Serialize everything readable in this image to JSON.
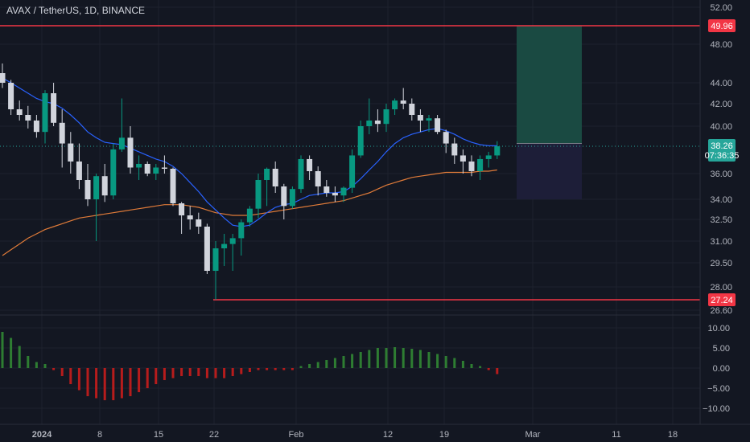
{
  "symbol": {
    "title": "AVAX / TetherUS, 1D, BINANCE"
  },
  "colors": {
    "background": "#131722",
    "grid": "#1e222d",
    "up": "#26a69a",
    "up_fill": "#089981",
    "down_fill": "#d1d4dc",
    "level_line": "#f23645",
    "ema_fast": "#2962ff",
    "ema_slow": "#e07b39",
    "price_line": "#26a69a",
    "osc_pos": "#2e7d32",
    "osc_neg": "#b71c1c",
    "target_zone": "#1a4d45",
    "stop_zone": "#1e1f3a"
  },
  "price_axis": {
    "ticks": [
      "52.00",
      "48.00",
      "44.00",
      "42.00",
      "40.00",
      "36.00",
      "34.00",
      "32.50",
      "31.00",
      "29.50",
      "28.00",
      "26.60"
    ]
  },
  "levels": [
    {
      "label": "49.96",
      "value": 49.96
    },
    {
      "label": "27.24",
      "value": 27.24
    }
  ],
  "current_price": {
    "label": "38.26",
    "countdown": "07:36:35",
    "value": 38.26
  },
  "oscillator_axis": {
    "ticks": [
      "10.00",
      "5.00",
      "0.00",
      "−5.00",
      "−10.00"
    ]
  },
  "time_axis": {
    "labels": [
      "2024",
      "8",
      "15",
      "22",
      "Feb",
      "12",
      "19",
      "Mar",
      "11",
      "18"
    ]
  },
  "position_tool": {
    "entry": 38.5,
    "target": 49.96,
    "stop": 34.0
  },
  "chart_data": {
    "type": "candlestick",
    "dates": [
      "Dec 27",
      "Dec 28",
      "Dec 29",
      "Dec 30",
      "Dec 31",
      "Jan 1",
      "Jan 2",
      "Jan 3",
      "Jan 4",
      "Jan 5",
      "Jan 6",
      "Jan 7",
      "Jan 8",
      "Jan 9",
      "Jan 10",
      "Jan 11",
      "Jan 12",
      "Jan 13",
      "Jan 14",
      "Jan 15",
      "Jan 16",
      "Jan 17",
      "Jan 18",
      "Jan 19",
      "Jan 20",
      "Jan 21",
      "Jan 22",
      "Jan 23",
      "Jan 24",
      "Jan 25",
      "Jan 26",
      "Jan 27",
      "Jan 28",
      "Jan 29",
      "Jan 30",
      "Jan 31",
      "Feb 1",
      "Feb 2",
      "Feb 3",
      "Feb 4",
      "Feb 5",
      "Feb 6",
      "Feb 7",
      "Feb 8",
      "Feb 9",
      "Feb 10",
      "Feb 11",
      "Feb 12",
      "Feb 13",
      "Feb 14",
      "Feb 15",
      "Feb 16",
      "Feb 17",
      "Feb 18",
      "Feb 19",
      "Feb 20",
      "Feb 21",
      "Feb 22",
      "Feb 23"
    ],
    "ohlc": [
      [
        45.0,
        46.0,
        43.5,
        44.0
      ],
      [
        44.0,
        44.3,
        41.0,
        41.5
      ],
      [
        41.5,
        42.3,
        40.5,
        41.0
      ],
      [
        41.0,
        41.8,
        39.8,
        40.5
      ],
      [
        40.5,
        41.0,
        39.0,
        39.5
      ],
      [
        39.5,
        43.3,
        38.5,
        43.0
      ],
      [
        43.0,
        44.0,
        40.0,
        40.3
      ],
      [
        40.3,
        41.5,
        36.5,
        38.5
      ],
      [
        38.5,
        39.5,
        36.0,
        37.0
      ],
      [
        37.0,
        38.5,
        34.8,
        35.5
      ],
      [
        35.5,
        36.8,
        33.5,
        34.0
      ],
      [
        34.0,
        36.0,
        31.0,
        35.8
      ],
      [
        35.8,
        36.8,
        33.8,
        34.3
      ],
      [
        34.3,
        38.5,
        34.0,
        38.0
      ],
      [
        38.0,
        42.5,
        37.8,
        39.0
      ],
      [
        39.0,
        40.0,
        36.0,
        36.5
      ],
      [
        36.5,
        37.5,
        35.5,
        36.8
      ],
      [
        36.8,
        37.0,
        35.8,
        36.0
      ],
      [
        36.0,
        36.8,
        35.5,
        36.5
      ],
      [
        36.5,
        37.5,
        36.0,
        36.4
      ],
      [
        36.4,
        36.5,
        33.5,
        33.7
      ],
      [
        33.7,
        33.8,
        31.5,
        32.8
      ],
      [
        32.8,
        33.5,
        31.8,
        32.5
      ],
      [
        32.5,
        33.0,
        31.5,
        32.0
      ],
      [
        32.0,
        32.2,
        28.8,
        29.0
      ],
      [
        29.0,
        31.0,
        27.24,
        30.5
      ],
      [
        30.5,
        31.5,
        29.3,
        30.8
      ],
      [
        30.8,
        31.5,
        29.0,
        31.2
      ],
      [
        31.2,
        32.5,
        30.0,
        32.3
      ],
      [
        32.3,
        33.5,
        32.0,
        33.3
      ],
      [
        33.3,
        36.0,
        32.6,
        35.5
      ],
      [
        35.5,
        36.5,
        33.5,
        36.4
      ],
      [
        36.4,
        37.0,
        34.5,
        35.0
      ],
      [
        35.0,
        35.2,
        32.5,
        33.5
      ],
      [
        33.5,
        35.0,
        33.3,
        34.8
      ],
      [
        34.8,
        37.5,
        34.5,
        37.2
      ],
      [
        37.2,
        37.5,
        35.5,
        36.2
      ],
      [
        36.2,
        36.6,
        34.3,
        35.0
      ],
      [
        35.0,
        35.5,
        34.2,
        34.5
      ],
      [
        34.5,
        35.0,
        33.8,
        34.3
      ],
      [
        34.3,
        35.0,
        33.8,
        34.9
      ],
      [
        34.9,
        38.0,
        34.5,
        37.5
      ],
      [
        37.5,
        40.5,
        37.3,
        40.0
      ],
      [
        40.0,
        42.5,
        39.3,
        40.5
      ],
      [
        40.5,
        41.5,
        39.5,
        40.2
      ],
      [
        40.2,
        42.0,
        39.5,
        41.5
      ],
      [
        41.5,
        42.5,
        41.0,
        42.3
      ],
      [
        42.3,
        43.5,
        41.5,
        42.0
      ],
      [
        42.0,
        42.5,
        40.5,
        41.0
      ],
      [
        41.0,
        41.5,
        39.5,
        40.5
      ],
      [
        40.5,
        41.0,
        39.5,
        40.7
      ],
      [
        40.7,
        41.0,
        39.3,
        39.5
      ],
      [
        39.5,
        39.7,
        37.7,
        38.5
      ],
      [
        38.5,
        39.0,
        36.8,
        37.5
      ],
      [
        37.5,
        38.0,
        36.0,
        37.0
      ],
      [
        37.0,
        37.5,
        35.8,
        36.2
      ],
      [
        36.2,
        37.5,
        35.5,
        37.2
      ],
      [
        37.2,
        37.8,
        36.5,
        37.5
      ],
      [
        37.5,
        38.7,
        37.2,
        38.26
      ]
    ],
    "ema_fast": [
      44.5,
      44.0,
      43.5,
      43.0,
      42.5,
      42.2,
      42.0,
      41.6,
      41.0,
      40.3,
      39.5,
      39.0,
      38.6,
      38.5,
      38.4,
      38.1,
      37.8,
      37.5,
      37.2,
      37.0,
      36.6,
      36.0,
      35.3,
      34.6,
      33.8,
      33.2,
      32.6,
      32.1,
      32.0,
      32.1,
      32.5,
      33.0,
      33.4,
      33.6,
      33.7,
      34.0,
      34.3,
      34.4,
      34.5,
      34.5,
      34.6,
      35.0,
      35.6,
      36.3,
      37.0,
      37.8,
      38.5,
      39.0,
      39.3,
      39.5,
      39.7,
      39.8,
      39.6,
      39.3,
      38.9,
      38.6,
      38.4,
      38.3,
      38.3
    ],
    "ema_slow": [
      30.0,
      30.4,
      30.8,
      31.2,
      31.5,
      31.8,
      32.0,
      32.2,
      32.4,
      32.6,
      32.7,
      32.8,
      32.9,
      33.0,
      33.1,
      33.2,
      33.3,
      33.4,
      33.5,
      33.6,
      33.6,
      33.6,
      33.5,
      33.4,
      33.2,
      33.0,
      32.9,
      32.8,
      32.8,
      32.8,
      32.9,
      33.0,
      33.1,
      33.2,
      33.3,
      33.4,
      33.5,
      33.6,
      33.7,
      33.8,
      33.9,
      34.1,
      34.3,
      34.5,
      34.8,
      35.1,
      35.3,
      35.5,
      35.7,
      35.8,
      35.9,
      36.0,
      36.1,
      36.1,
      36.1,
      36.1,
      36.2,
      36.2,
      36.3
    ],
    "oscillator": [
      9.0,
      7.5,
      5.5,
      3.0,
      1.5,
      1.0,
      -0.5,
      -2.0,
      -4.0,
      -5.5,
      -7.0,
      -7.5,
      -8.0,
      -8.0,
      -7.5,
      -7.0,
      -6.0,
      -5.0,
      -4.0,
      -3.0,
      -2.5,
      -2.0,
      -2.0,
      -2.0,
      -2.5,
      -2.5,
      -2.5,
      -2.0,
      -1.5,
      -1.0,
      -0.5,
      -0.5,
      -0.5,
      -0.5,
      -0.5,
      0.5,
      1.0,
      1.5,
      2.0,
      2.5,
      3.0,
      3.5,
      4.0,
      4.5,
      5.0,
      5.0,
      5.2,
      5.0,
      4.8,
      4.5,
      4.0,
      3.5,
      3.0,
      2.5,
      1.8,
      1.0,
      0.5,
      -0.5,
      -1.5
    ],
    "price_range": [
      26.0,
      53.0
    ],
    "oscillator_range": [
      -11.0,
      11.0
    ]
  }
}
